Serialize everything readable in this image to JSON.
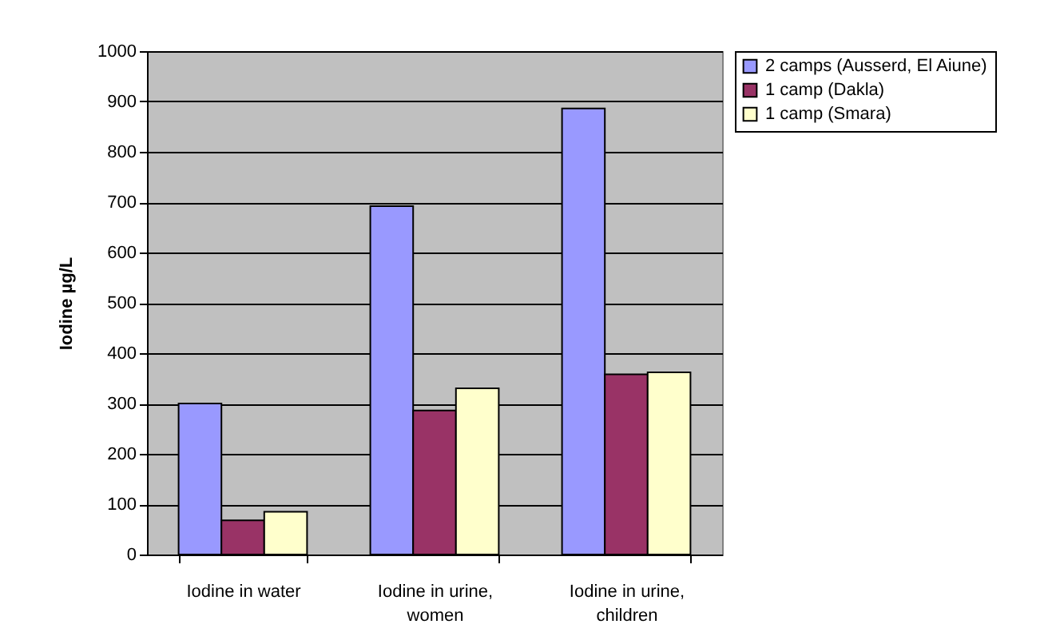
{
  "chart_data": {
    "type": "bar",
    "ylabel": "Iodine µg/L",
    "categories": [
      "Iodine in water",
      "Iodine in urine, women",
      "Iodine in urine, children"
    ],
    "series": [
      {
        "name": "2 camps (Ausserd, El Aiune)",
        "color": "#9999ff",
        "values": [
          300,
          692,
          886
        ]
      },
      {
        "name": "1 camp (Dakla)",
        "color": "#993366",
        "values": [
          68,
          286,
          358
        ]
      },
      {
        "name": "1 camp (Smara)",
        "color": "#ffffcc",
        "values": [
          85,
          330,
          362
        ]
      }
    ],
    "ylim": [
      0,
      1000
    ],
    "yticks": [
      0,
      100,
      200,
      300,
      400,
      500,
      600,
      700,
      800,
      900,
      1000
    ],
    "grid": "y",
    "legend": "right"
  }
}
